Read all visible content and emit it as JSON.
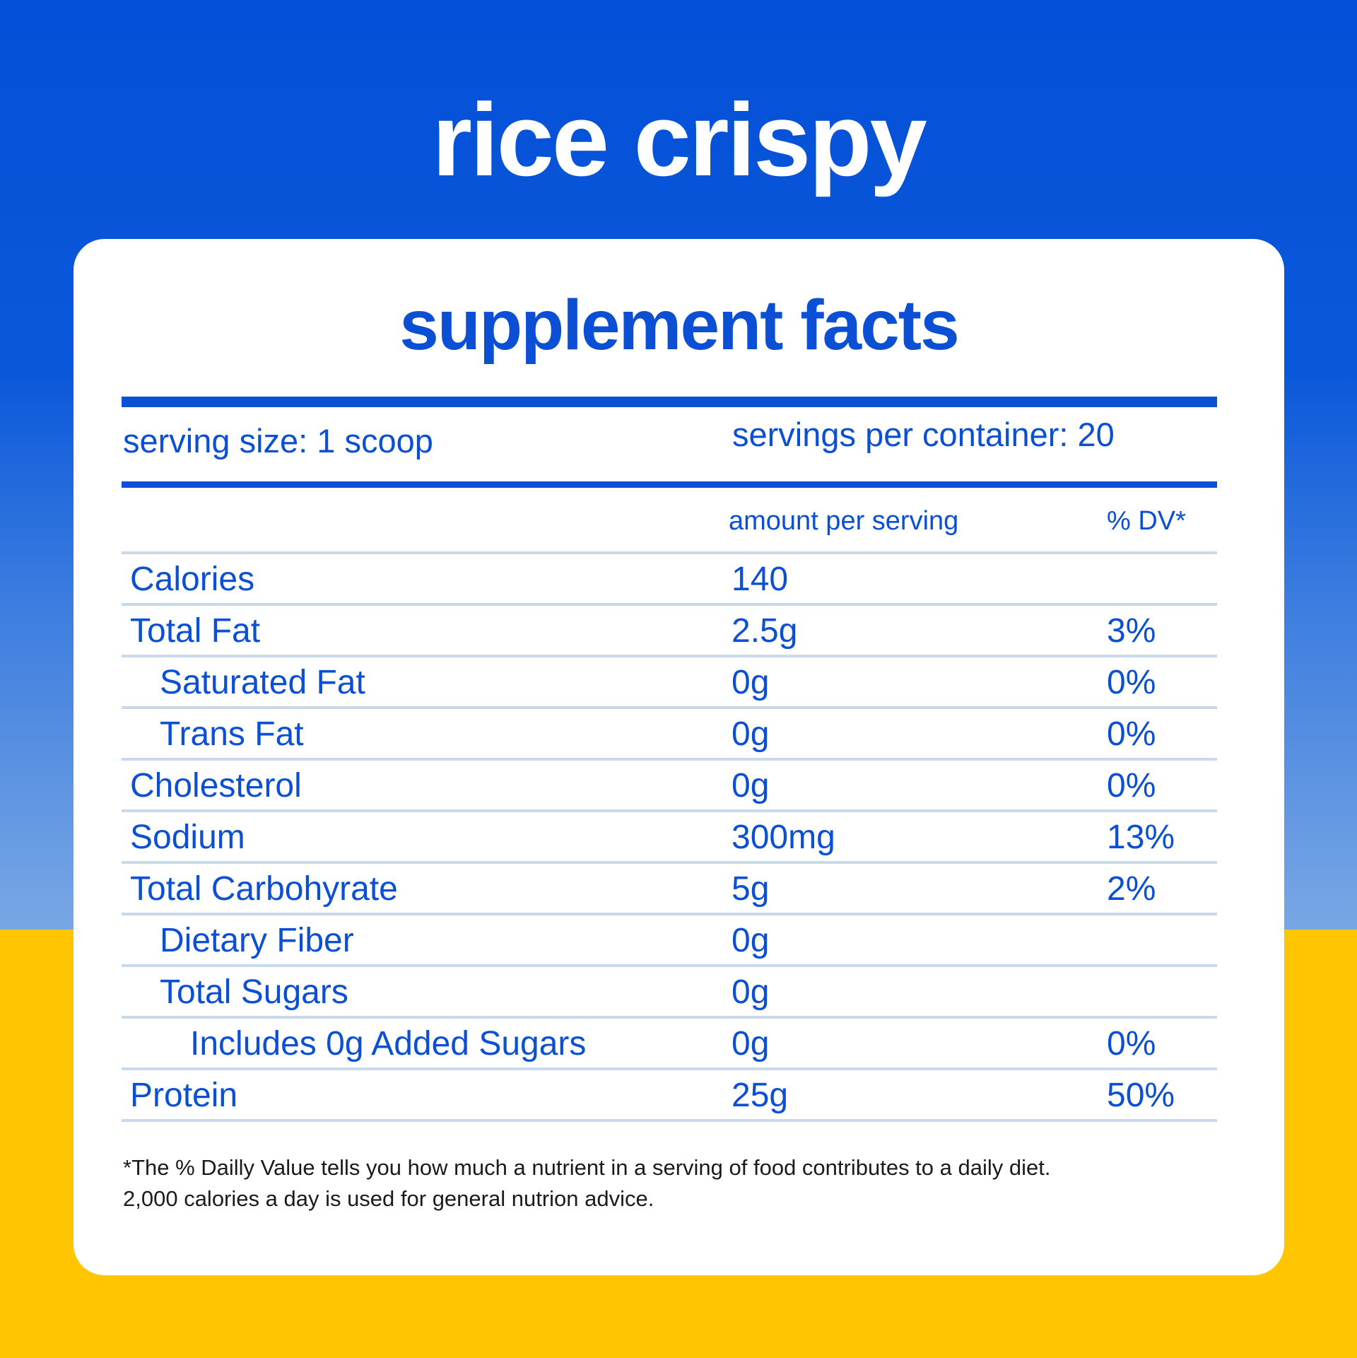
{
  "title": "rice crispy",
  "panel_title": "supplement facts",
  "serving_size": "serving size: 1 scoop",
  "servings_per_container": "servings per container: 20",
  "columns": {
    "amount": "amount per serving",
    "dv": "% DV*"
  },
  "rows": [
    {
      "name": "Calories",
      "amount": "140",
      "dv": ""
    },
    {
      "name": "Total Fat",
      "amount": "2.5g",
      "dv": "3%"
    },
    {
      "name": "Saturated Fat",
      "amount": "0g",
      "dv": "0%"
    },
    {
      "name": "Trans Fat",
      "amount": "0g",
      "dv": "0%"
    },
    {
      "name": "Cholesterol",
      "amount": "0g",
      "dv": "0%"
    },
    {
      "name": "Sodium",
      "amount": "300mg",
      "dv": "13%"
    },
    {
      "name": "Total Carbohyrate",
      "amount": "5g",
      "dv": "2%"
    },
    {
      "name": "Dietary Fiber",
      "amount": "0g",
      "dv": ""
    },
    {
      "name": "Total Sugars",
      "amount": "0g",
      "dv": ""
    },
    {
      "name": "Includes 0g Added Sugars",
      "amount": "0g",
      "dv": "0%"
    },
    {
      "name": "Protein",
      "amount": "25g",
      "dv": "50%"
    }
  ],
  "footnote": {
    "line1": "*The % Dailly Value tells you how much a nutrient in a serving of food contributes to a daily diet.",
    "line2": "2,000 calories a day is used for general nutrion advice."
  },
  "colors": {
    "brand_blue": "#0a4fd4",
    "background_yellow": "#ffc600",
    "row_divider": "#c9d9ec"
  }
}
